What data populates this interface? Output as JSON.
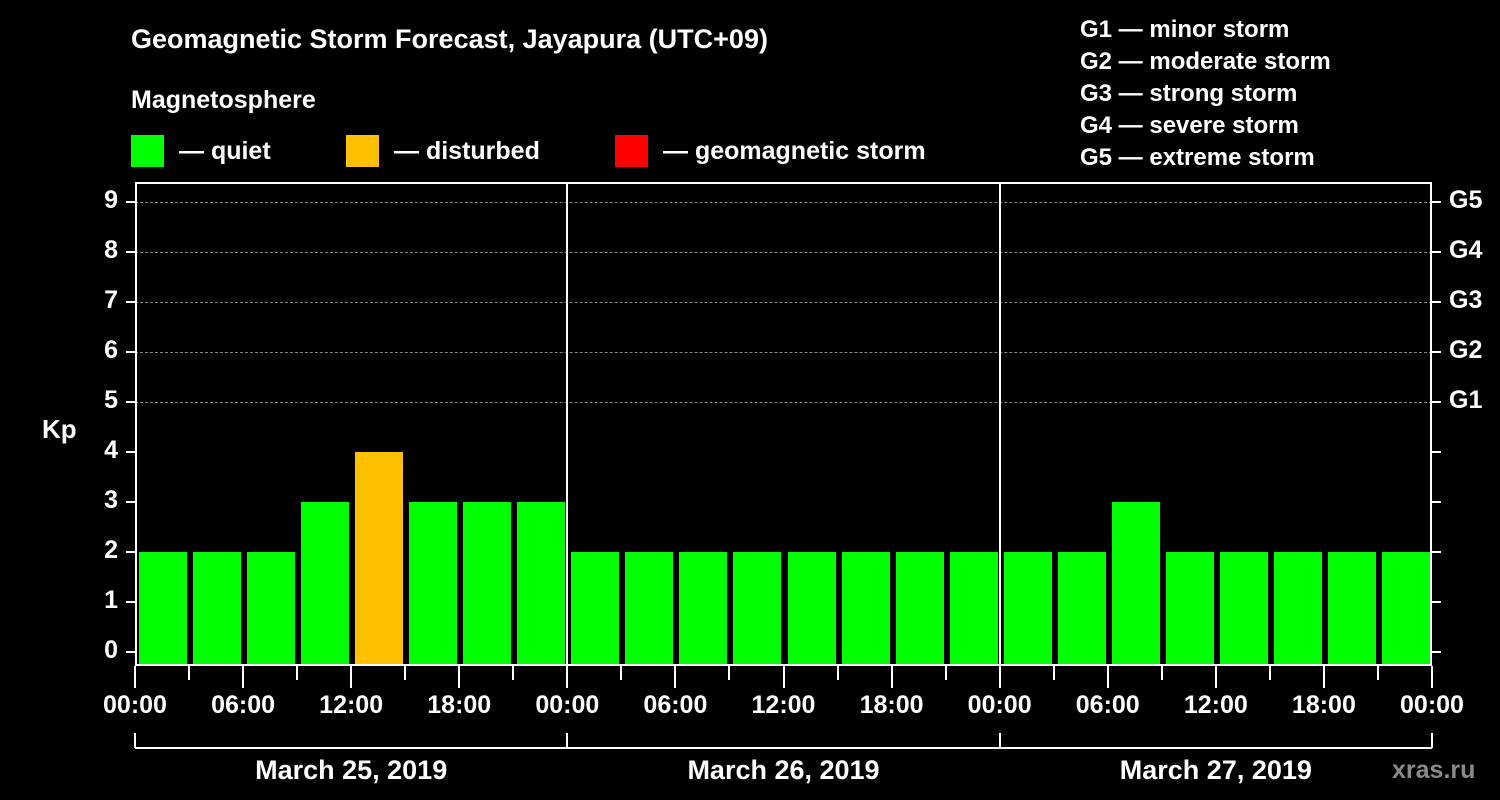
{
  "title": "Geomagnetic Storm Forecast, Jayapura (UTC+09)",
  "subtitle": "Magnetosphere",
  "legend": [
    {
      "label": "— quiet",
      "color": "#00ff00"
    },
    {
      "label": "— disturbed",
      "color": "#ffc000"
    },
    {
      "label": "— geomagnetic storm",
      "color": "#ff0000"
    }
  ],
  "g_scale": [
    "G1 — minor storm",
    "G2 — moderate storm",
    "G3 — strong storm",
    "G4 — severe storm",
    "G5 — extreme storm"
  ],
  "watermark": "xras.ru",
  "chart_data": {
    "type": "bar",
    "title": "Geomagnetic Storm Forecast, Jayapura (UTC+09)",
    "ylabel": "Kp",
    "ylim": [
      0,
      9
    ],
    "y_ticks": [
      "0",
      "1",
      "2",
      "3",
      "4",
      "5",
      "6",
      "7",
      "8",
      "9"
    ],
    "right_ticks": [
      {
        "value": 5,
        "label": "G1"
      },
      {
        "value": 6,
        "label": "G2"
      },
      {
        "value": 7,
        "label": "G3"
      },
      {
        "value": 8,
        "label": "G4"
      },
      {
        "value": 9,
        "label": "G5"
      }
    ],
    "grid": "dashed at Kp 5-9",
    "x_tick_labels": [
      "00:00",
      "06:00",
      "12:00",
      "18:00",
      "00:00",
      "06:00",
      "12:00",
      "18:00",
      "00:00",
      "06:00",
      "12:00",
      "18:00",
      "00:00"
    ],
    "dates": [
      "March 25, 2019",
      "March 26, 2019",
      "March 27, 2019"
    ],
    "interval_hours": 3,
    "values": [
      2,
      2,
      2,
      3,
      4,
      3,
      3,
      3,
      2,
      2,
      2,
      2,
      2,
      2,
      2,
      2,
      2,
      2,
      3,
      2,
      2,
      2,
      2,
      2
    ],
    "status": [
      "quiet",
      "quiet",
      "quiet",
      "quiet",
      "disturbed",
      "quiet",
      "quiet",
      "quiet",
      "quiet",
      "quiet",
      "quiet",
      "quiet",
      "quiet",
      "quiet",
      "quiet",
      "quiet",
      "quiet",
      "quiet",
      "quiet",
      "quiet",
      "quiet",
      "quiet",
      "quiet",
      "quiet"
    ],
    "colors": {
      "quiet": "#00ff00",
      "disturbed": "#ffc000",
      "storm": "#ff0000"
    }
  }
}
